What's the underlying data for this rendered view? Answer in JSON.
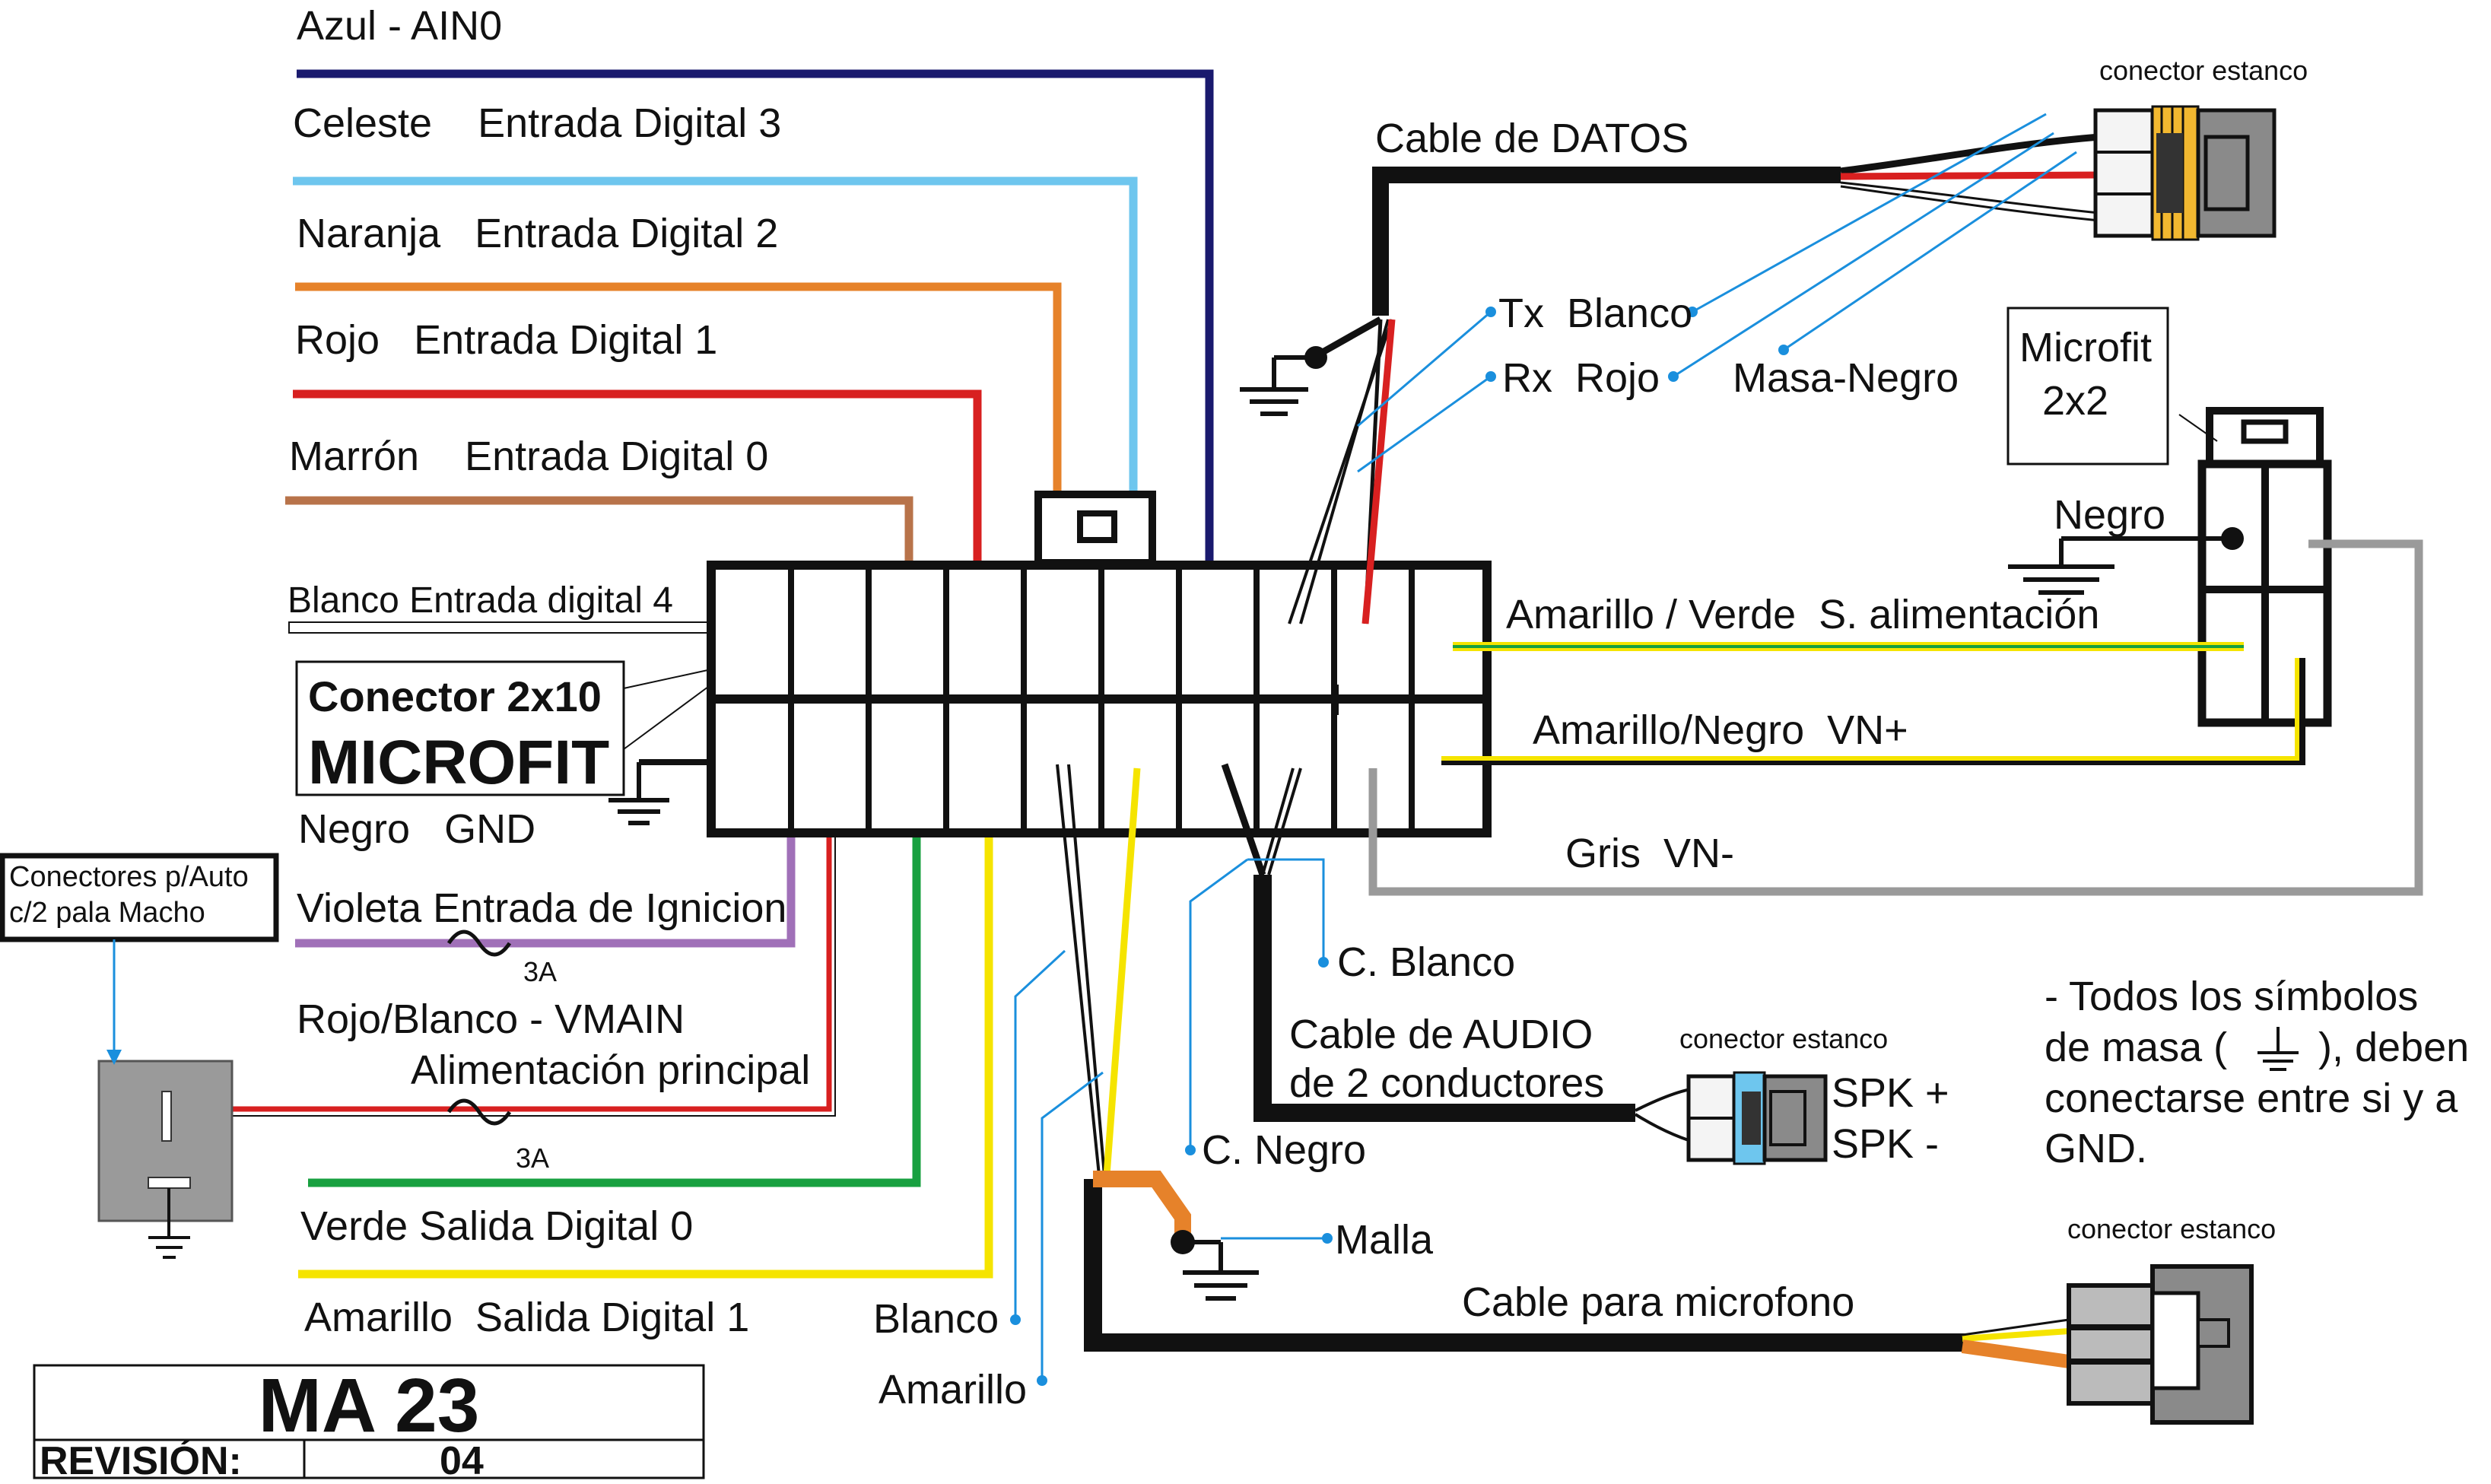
{
  "labels": {
    "azul": "Azul - AIN0",
    "celeste": "Celeste    Entrada Digital 3",
    "naranja": "Naranja   Entrada Digital 2",
    "rojo": "Rojo   Entrada Digital 1",
    "marron": "Marrón    Entrada Digital 0",
    "blanco_ed4": "Blanco Entrada digital 4",
    "conector_line1": "Conector 2x10",
    "conector_line2": "MICROFIT",
    "negro_gnd": "Negro   GND",
    "violeta": "Violeta Entrada de Ignicion",
    "fuse1": "3A",
    "rojo_blanco": "Rojo/Blanco - VMAIN",
    "alim_principal": "Alimentación principal",
    "fuse2": "3A",
    "verde": "Verde Salida Digital 0",
    "amarillo_sd1": "Amarillo  Salida Digital 1",
    "blanco": "Blanco",
    "amarillo": "Amarillo",
    "conectores_auto_1": "Conectores p/Auto",
    "conectores_auto_2": "c/2 pala Macho",
    "cable_datos": "Cable de DATOS",
    "tx": "Tx  Blanco",
    "rx": "Rx  Rojo",
    "masa_negro": "Masa-Negro",
    "conector_estanco_1": "conector estanco",
    "microfit_1": "Microfit",
    "microfit_2": "2x2",
    "negro": "Negro",
    "amarillo_verde": "Amarillo / Verde  S. alimentación",
    "amarillo_negro": "Amarillo/Negro  VN+",
    "gris": "Gris  VN-",
    "c_blanco": "C. Blanco",
    "cable_audio_1": "Cable de AUDIO",
    "cable_audio_2": "de 2 conductores",
    "conector_estanco_2": "conector estanco",
    "spk_plus": "SPK +",
    "spk_minus": "SPK -",
    "c_negro": "C. Negro",
    "malla": "Malla",
    "cable_microfono": "Cable para microfono",
    "conector_estanco_3": "conector estanco",
    "note_1": "- Todos los símbolos",
    "note_2a": "de masa (",
    "note_2b": "), deben",
    "note_3": "conectarse entre si y a",
    "note_4": "GND."
  },
  "title_block": {
    "model": "MA 23",
    "revision_label": "REVISIÓN:",
    "revision_value": "04"
  },
  "colors": {
    "azul": "#1a1a6e",
    "celeste": "#6ec6ee",
    "naranja": "#e6822a",
    "rojo": "#d82020",
    "marron": "#b8734a",
    "violeta": "#a070b8",
    "verde": "#18a040",
    "amarillo": "#f5e400",
    "gris": "#9a9a9a",
    "negro": "#111111",
    "pointer": "#1a8fdd"
  }
}
